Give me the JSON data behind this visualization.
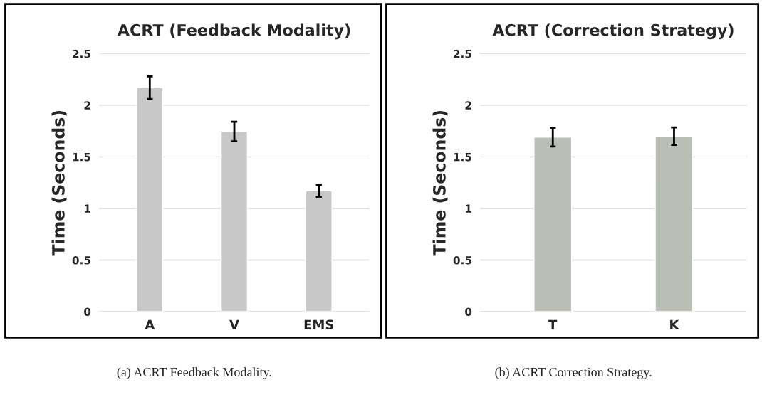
{
  "chart_data": [
    {
      "type": "bar",
      "title": "ACRT (Feedback Modality)",
      "ylabel": "Time (Seconds)",
      "categories": [
        "A",
        "V",
        "EMS"
      ],
      "values": [
        2.17,
        1.745,
        1.17
      ],
      "errors": [
        0.11,
        0.095,
        0.06
      ],
      "color": "#c8c8c8",
      "ylim": [
        0,
        2.5
      ],
      "yticks": [
        0,
        0.5,
        1,
        1.5,
        2,
        2.5
      ],
      "grid": "y",
      "annotations": [
        "(a) ACRT Feedback Modality."
      ]
    },
    {
      "type": "bar",
      "title": "ACRT (Correction Strategy)",
      "ylabel": "Time (Seconds)",
      "categories": [
        "T",
        "K"
      ],
      "values": [
        1.69,
        1.7
      ],
      "errors": [
        0.09,
        0.085
      ],
      "color": "#b9bfb4",
      "ylim": [
        0,
        2.5
      ],
      "yticks": [
        0,
        0.5,
        1,
        1.5,
        2,
        2.5
      ],
      "grid": "y",
      "annotations": [
        "(b) ACRT Correction Strategy."
      ]
    }
  ]
}
